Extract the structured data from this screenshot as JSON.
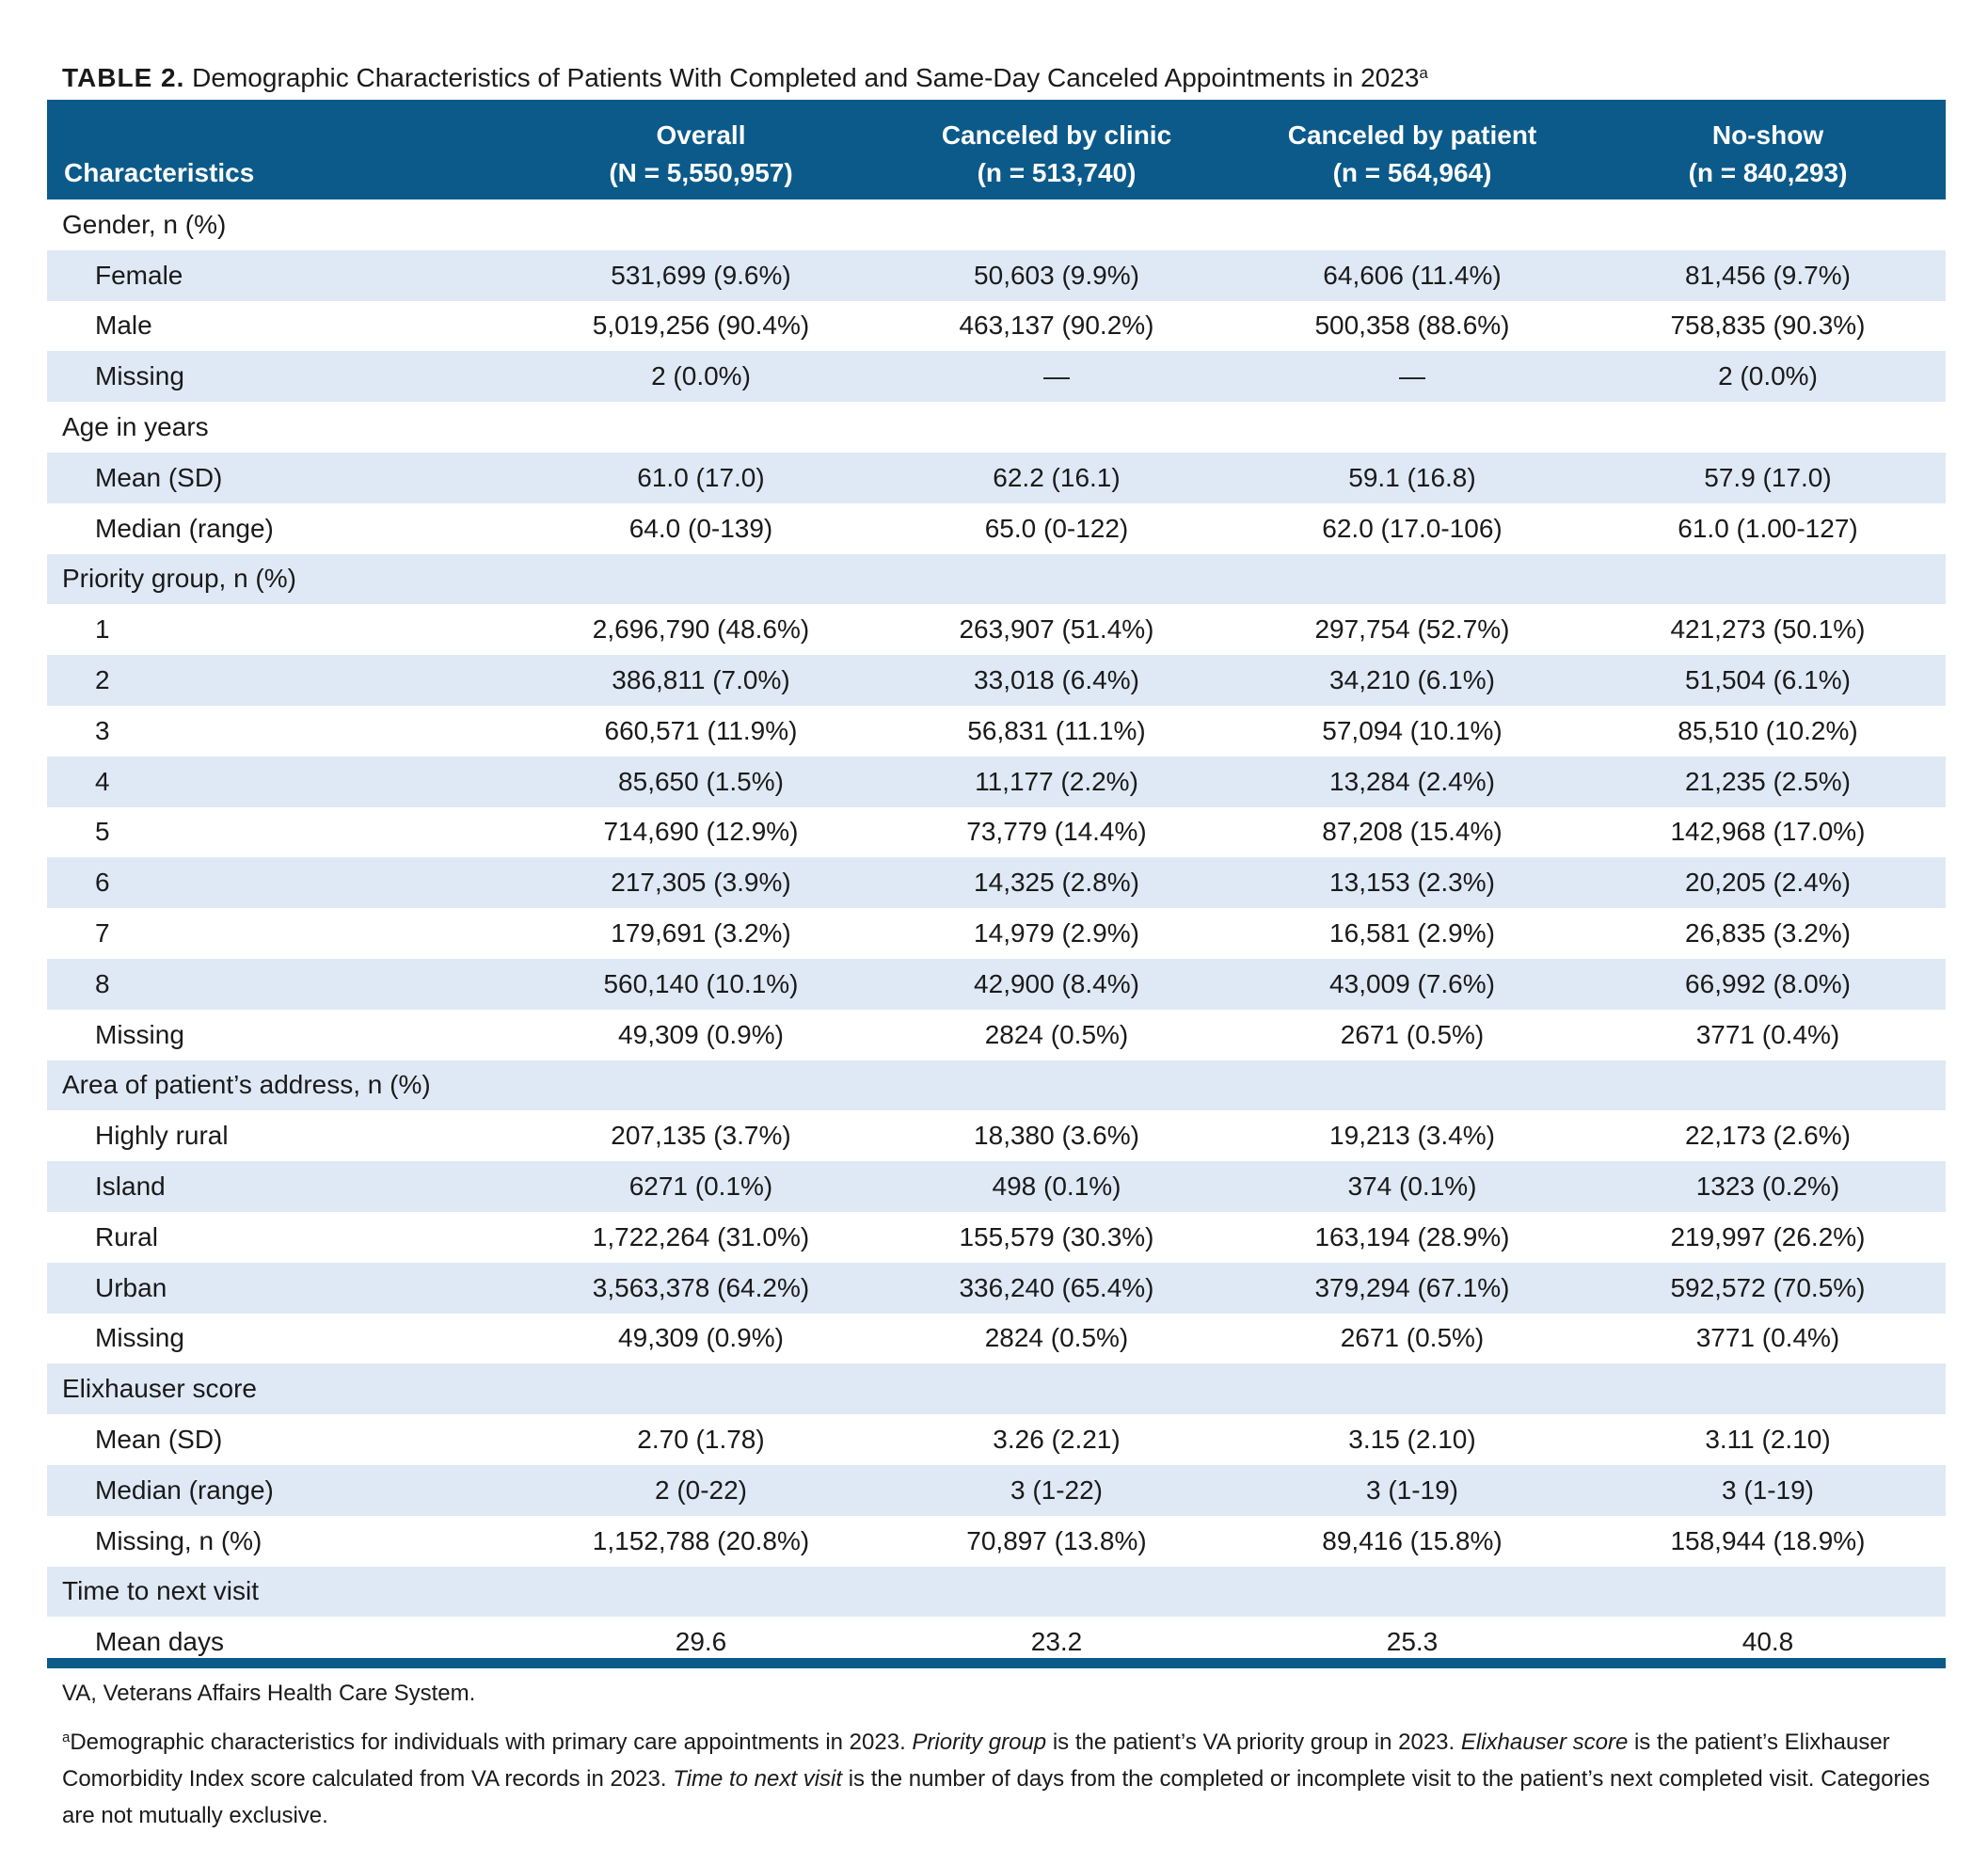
{
  "caption": {
    "label": "TABLE 2.",
    "text": "Demographic Characteristics of Patients With Completed and Same-Day Canceled Appointments in 2023",
    "sup": "a"
  },
  "header": {
    "characteristics": "Characteristics",
    "overall": "Overall",
    "overall_n": "(N = 5,550,957)",
    "clinic": "Canceled by clinic",
    "clinic_n": "(n = 513,740)",
    "patient": "Canceled by patient",
    "patient_n": "(n = 564,964)",
    "noshow": "No-show",
    "noshow_n": "(n = 840,293)"
  },
  "rows": [
    {
      "label": "Gender, n (%)",
      "section": true
    },
    {
      "label": "Female",
      "v": [
        "531,699 (9.6%)",
        "50,603 (9.9%)",
        "64,606 (11.4%)",
        "81,456 (9.7%)"
      ]
    },
    {
      "label": "Male",
      "v": [
        "5,019,256 (90.4%)",
        "463,137 (90.2%)",
        "500,358 (88.6%)",
        "758,835 (90.3%)"
      ]
    },
    {
      "label": "Missing",
      "v": [
        "2 (0.0%)",
        "—",
        "—",
        "2 (0.0%)"
      ]
    },
    {
      "label": "Age in years",
      "section": true
    },
    {
      "label": "Mean (SD)",
      "v": [
        "61.0 (17.0)",
        "62.2 (16.1)",
        "59.1 (16.8)",
        "57.9 (17.0)"
      ]
    },
    {
      "label": "Median (range)",
      "v": [
        "64.0 (0-139)",
        "65.0 (0-122)",
        "62.0 (17.0-106)",
        "61.0 (1.00-127)"
      ]
    },
    {
      "label": "Priority group, n (%)",
      "section": true
    },
    {
      "label": "1",
      "v": [
        "2,696,790 (48.6%)",
        "263,907 (51.4%)",
        "297,754 (52.7%)",
        "421,273 (50.1%)"
      ]
    },
    {
      "label": "2",
      "v": [
        "386,811 (7.0%)",
        "33,018 (6.4%)",
        "34,210 (6.1%)",
        "51,504 (6.1%)"
      ]
    },
    {
      "label": "3",
      "v": [
        "660,571 (11.9%)",
        "56,831 (11.1%)",
        "57,094 (10.1%)",
        "85,510 (10.2%)"
      ]
    },
    {
      "label": "4",
      "v": [
        "85,650 (1.5%)",
        "11,177 (2.2%)",
        "13,284 (2.4%)",
        "21,235 (2.5%)"
      ]
    },
    {
      "label": "5",
      "v": [
        "714,690 (12.9%)",
        "73,779 (14.4%)",
        "87,208 (15.4%)",
        "142,968 (17.0%)"
      ]
    },
    {
      "label": "6",
      "v": [
        "217,305 (3.9%)",
        "14,325 (2.8%)",
        "13,153 (2.3%)",
        "20,205 (2.4%)"
      ]
    },
    {
      "label": "7",
      "v": [
        "179,691 (3.2%)",
        "14,979 (2.9%)",
        "16,581 (2.9%)",
        "26,835 (3.2%)"
      ]
    },
    {
      "label": "8",
      "v": [
        "560,140 (10.1%)",
        "42,900 (8.4%)",
        "43,009 (7.6%)",
        "66,992 (8.0%)"
      ]
    },
    {
      "label": "Missing",
      "v": [
        "49,309 (0.9%)",
        "2824 (0.5%)",
        "2671 (0.5%)",
        "3771 (0.4%)"
      ]
    },
    {
      "label": "Area of patient’s address, n (%)",
      "section": true
    },
    {
      "label": "Highly rural",
      "v": [
        "207,135 (3.7%)",
        "18,380 (3.6%)",
        "19,213 (3.4%)",
        "22,173 (2.6%)"
      ]
    },
    {
      "label": "Island",
      "v": [
        "6271 (0.1%)",
        "498 (0.1%)",
        "374 (0.1%)",
        "1323 (0.2%)"
      ]
    },
    {
      "label": "Rural",
      "v": [
        "1,722,264 (31.0%)",
        "155,579 (30.3%)",
        "163,194 (28.9%)",
        "219,997 (26.2%)"
      ]
    },
    {
      "label": "Urban",
      "v": [
        "3,563,378 (64.2%)",
        "336,240 (65.4%)",
        "379,294 (67.1%)",
        "592,572 (70.5%)"
      ]
    },
    {
      "label": "Missing",
      "v": [
        "49,309 (0.9%)",
        "2824 (0.5%)",
        "2671 (0.5%)",
        "3771 (0.4%)"
      ]
    },
    {
      "label": "Elixhauser score",
      "section": true
    },
    {
      "label": "Mean (SD)",
      "v": [
        "2.70 (1.78)",
        "3.26 (2.21)",
        "3.15 (2.10)",
        "3.11 (2.10)"
      ]
    },
    {
      "label": "Median (range)",
      "v": [
        "2 (0-22)",
        "3 (1-22)",
        "3 (1-19)",
        "3 (1-19)"
      ]
    },
    {
      "label": "Missing, n (%)",
      "v": [
        "1,152,788 (20.8%)",
        "70,897 (13.8%)",
        "89,416 (15.8%)",
        "158,944 (18.9%)"
      ]
    },
    {
      "label": "Time to next visit",
      "section": true
    },
    {
      "label": "Mean days",
      "v": [
        "29.6",
        "23.2",
        "25.3",
        "40.8"
      ]
    }
  ],
  "footnotes": {
    "abbrev": "VA, Veterans Affairs Health Care System.",
    "note_sup": "a",
    "note_1": "Demographic characteristics for individuals with primary care appointments in 2023. ",
    "note_term1": "Priority group",
    "note_2": " is the patient’s VA priority group in 2023. ",
    "note_term2": "Elixhauser score",
    "note_3": " is the patient’s Elixhauser Comorbidity Index score calculated from VA records in 2023. ",
    "note_term3": "Time to next visit",
    "note_4": " is the number of days from the completed or incomplete visit to the patient’s next completed visit. Categories are not mutually exclusive."
  },
  "colors": {
    "header": "#0b5a8a",
    "shade": "#dfe9f5"
  }
}
